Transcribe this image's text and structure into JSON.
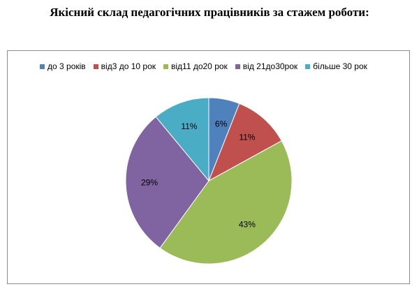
{
  "title": "Якісний склад педагогічних працівників  за стажем роботи:",
  "chart_data": {
    "type": "pie",
    "title": "",
    "categories": [
      "до 3 років",
      "від3 до 10 рок",
      "від11 до20 рок",
      "від 21до30рок",
      "більше 30 рок"
    ],
    "values": [
      6,
      11,
      43,
      29,
      11
    ],
    "data_labels": [
      "6%",
      "11%",
      "43%",
      "29%",
      "11%"
    ],
    "colors": [
      "#4f81bd",
      "#c0504d",
      "#9bbb59",
      "#8064a2",
      "#4bacc6"
    ],
    "legend_position": "top",
    "start_angle": "12 o'clock",
    "direction": "clockwise"
  }
}
